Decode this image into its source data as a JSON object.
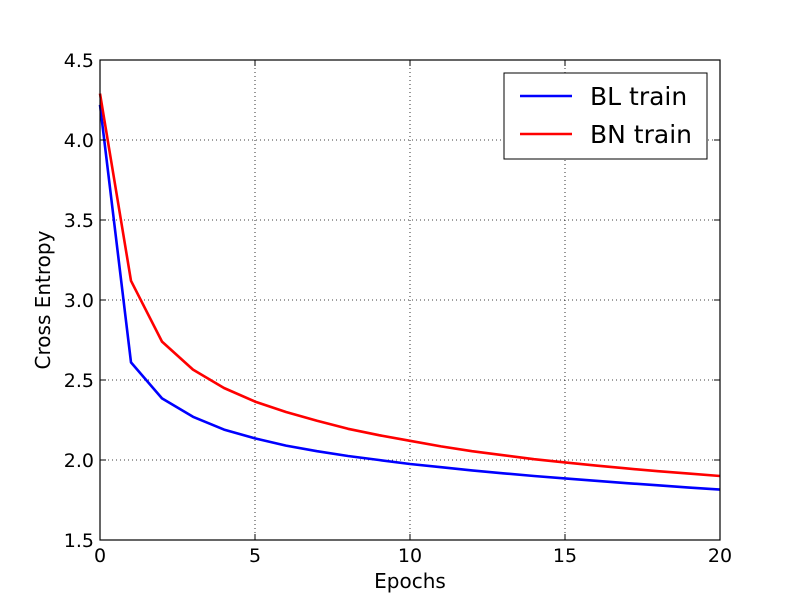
{
  "chart_data": {
    "type": "line",
    "title": "",
    "xlabel": "Epochs",
    "ylabel": "Cross Entropy",
    "xlim": [
      0,
      20
    ],
    "ylim": [
      1.5,
      4.5
    ],
    "xticks": [
      0,
      5,
      10,
      15,
      20
    ],
    "yticks": [
      1.5,
      2.0,
      2.5,
      3.0,
      3.5,
      4.0,
      4.5
    ],
    "xtick_labels": [
      "0",
      "5",
      "10",
      "15",
      "20"
    ],
    "ytick_labels": [
      "1.5",
      "2.0",
      "2.5",
      "3.0",
      "3.5",
      "4.0",
      "4.5"
    ],
    "grid": true,
    "legend_position": "top-right",
    "x": [
      0,
      1,
      2,
      3,
      4,
      5,
      6,
      7,
      8,
      9,
      10,
      11,
      12,
      13,
      14,
      15,
      16,
      17,
      18,
      19,
      20
    ],
    "series": [
      {
        "name": "BL train",
        "color": "#0000ff",
        "values": [
          4.22,
          2.61,
          2.385,
          2.27,
          2.19,
          2.135,
          2.09,
          2.055,
          2.025,
          2.0,
          1.975,
          1.955,
          1.935,
          1.917,
          1.9,
          1.885,
          1.87,
          1.855,
          1.842,
          1.828,
          1.815
        ]
      },
      {
        "name": "BN train",
        "color": "#ff0000",
        "values": [
          4.29,
          3.12,
          2.74,
          2.565,
          2.45,
          2.365,
          2.3,
          2.245,
          2.195,
          2.155,
          2.12,
          2.085,
          2.055,
          2.03,
          2.005,
          1.985,
          1.965,
          1.947,
          1.93,
          1.915,
          1.9
        ]
      }
    ]
  }
}
